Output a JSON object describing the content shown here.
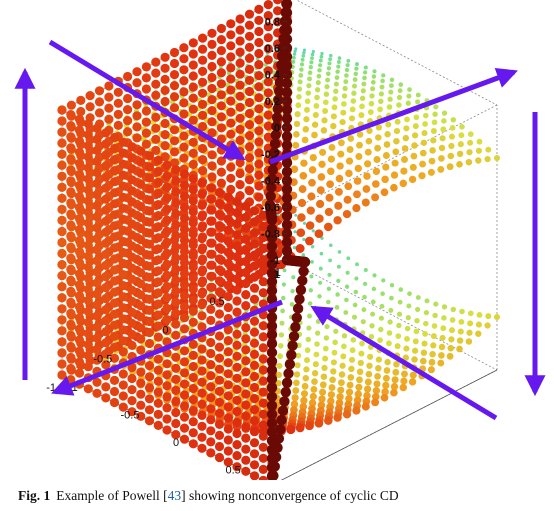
{
  "chart_data": {
    "type": "scatter",
    "subtype": "3d-scatter",
    "title": "",
    "axes": {
      "x": {
        "ticks": [
          "-1",
          "-0.5",
          "0",
          "0.5",
          "1"
        ],
        "range": [
          -1,
          1
        ]
      },
      "y": {
        "ticks": [
          "-1",
          "-0.5",
          "0",
          "0.5",
          "1"
        ],
        "range": [
          -1,
          1
        ]
      },
      "z": {
        "ticks": [
          "-1",
          "-0.8",
          "-0.6",
          "-0.4",
          "-0.2",
          "0",
          "0.2",
          "0.4",
          "0.6",
          "0.8",
          "1"
        ],
        "range": [
          -1,
          1
        ]
      }
    },
    "extra_tick_labels": {
      "z_bottom_corner": "1",
      "front_right_corner": "1"
    },
    "grid": true,
    "colormap": [
      "#3fd0e0",
      "#7fe07f",
      "#d8e040",
      "#f0a020",
      "#e03010",
      "#8a0a00"
    ],
    "arrow_color": "#6619ee",
    "arrows": [
      {
        "name": "top-left",
        "direction": "down-right"
      },
      {
        "name": "top-right",
        "direction": "up-right"
      },
      {
        "name": "left",
        "direction": "up"
      },
      {
        "name": "right",
        "direction": "down"
      },
      {
        "name": "bottom-left",
        "direction": "down-left"
      },
      {
        "name": "bottom-right",
        "direction": "up-left"
      }
    ]
  },
  "caption": {
    "fig_label": "Fig. 1",
    "text_before": "Example of Powell [",
    "ref": "43",
    "text_after": "] showing nonconvergence of cyclic CD"
  }
}
